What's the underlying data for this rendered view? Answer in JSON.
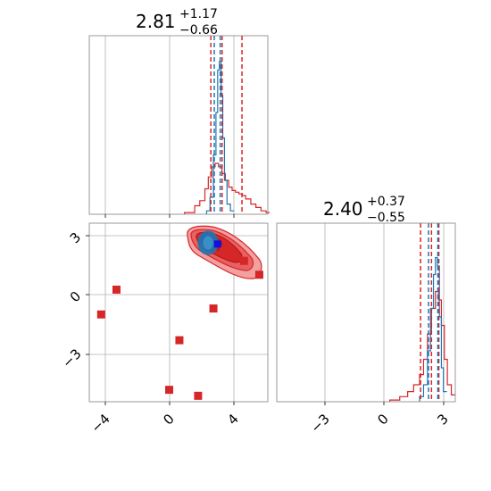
{
  "chart_data": {
    "type": "corner",
    "parameters": [
      {
        "title_value": "2.81",
        "title_upper": "+1.17",
        "title_lower": "−0.66",
        "range": [
          -5,
          5.5
        ],
        "ticks": [
          -4,
          0,
          4
        ],
        "red_lines": [
          2.15,
          2.81,
          3.98
        ],
        "blue_lines": [
          2.35,
          2.7
        ]
      },
      {
        "title_value": "2.40",
        "title_upper": "+0.37",
        "title_lower": "−0.55",
        "range": [
          -5.4,
          3.6
        ],
        "ticks": [
          -3,
          0,
          3
        ],
        "red_lines": [
          1.85,
          2.4,
          2.77
        ],
        "blue_lines": [
          2.25,
          2.72
        ]
      }
    ],
    "hist_x": {
      "red_bins": [
        [
          0.6,
          0.01
        ],
        [
          1.2,
          0.05
        ],
        [
          1.5,
          0.08
        ],
        [
          1.8,
          0.15
        ],
        [
          2.0,
          0.22
        ],
        [
          2.2,
          0.28
        ],
        [
          2.4,
          0.3
        ],
        [
          2.6,
          0.28
        ],
        [
          2.8,
          0.24
        ],
        [
          3.0,
          0.2
        ],
        [
          3.2,
          0.16
        ],
        [
          3.4,
          0.14
        ],
        [
          3.6,
          0.13
        ],
        [
          3.8,
          0.12
        ],
        [
          4.0,
          0.11
        ],
        [
          4.2,
          0.09
        ],
        [
          4.5,
          0.06
        ],
        [
          4.8,
          0.04
        ],
        [
          5.1,
          0.02
        ],
        [
          5.4,
          0.01
        ]
      ],
      "blue_bins": [
        [
          1.9,
          0.02
        ],
        [
          2.1,
          0.1
        ],
        [
          2.3,
          0.35
        ],
        [
          2.45,
          0.6
        ],
        [
          2.55,
          0.85
        ],
        [
          2.65,
          0.9
        ],
        [
          2.75,
          0.7
        ],
        [
          2.85,
          0.45
        ],
        [
          2.95,
          0.2
        ],
        [
          3.1,
          0.06
        ],
        [
          3.3,
          0.02
        ]
      ],
      "ymax": 1.0
    },
    "hist_y": {
      "red_bins": [
        [
          0.3,
          0.01
        ],
        [
          0.8,
          0.03
        ],
        [
          1.2,
          0.06
        ],
        [
          1.5,
          0.1
        ],
        [
          1.8,
          0.16
        ],
        [
          2.0,
          0.25
        ],
        [
          2.2,
          0.4
        ],
        [
          2.4,
          0.55
        ],
        [
          2.6,
          0.65
        ],
        [
          2.75,
          0.6
        ],
        [
          2.9,
          0.45
        ],
        [
          3.05,
          0.25
        ],
        [
          3.2,
          0.1
        ],
        [
          3.4,
          0.04
        ]
      ],
      "blue_bins": [
        [
          1.8,
          0.03
        ],
        [
          2.0,
          0.1
        ],
        [
          2.2,
          0.3
        ],
        [
          2.35,
          0.55
        ],
        [
          2.5,
          0.75
        ],
        [
          2.6,
          0.85
        ],
        [
          2.7,
          0.8
        ],
        [
          2.8,
          0.5
        ],
        [
          2.9,
          0.2
        ],
        [
          3.0,
          0.06
        ]
      ],
      "ymax": 1.0
    },
    "outlier_points": [
      [
        -4.3,
        -1.0
      ],
      [
        -3.4,
        0.25
      ],
      [
        -0.3,
        -4.8
      ],
      [
        0.3,
        -2.3
      ],
      [
        1.4,
        -5.1
      ],
      [
        2.3,
        -0.7
      ],
      [
        2.9,
        2.3
      ],
      [
        3.5,
        2.0
      ],
      [
        4.1,
        1.7
      ],
      [
        5.0,
        1.0
      ]
    ],
    "blue_square": [
      2.55,
      2.55
    ],
    "colors": {
      "red": "#d62728",
      "blue": "#1f77b4",
      "red_light": "#f2a0a0"
    }
  }
}
